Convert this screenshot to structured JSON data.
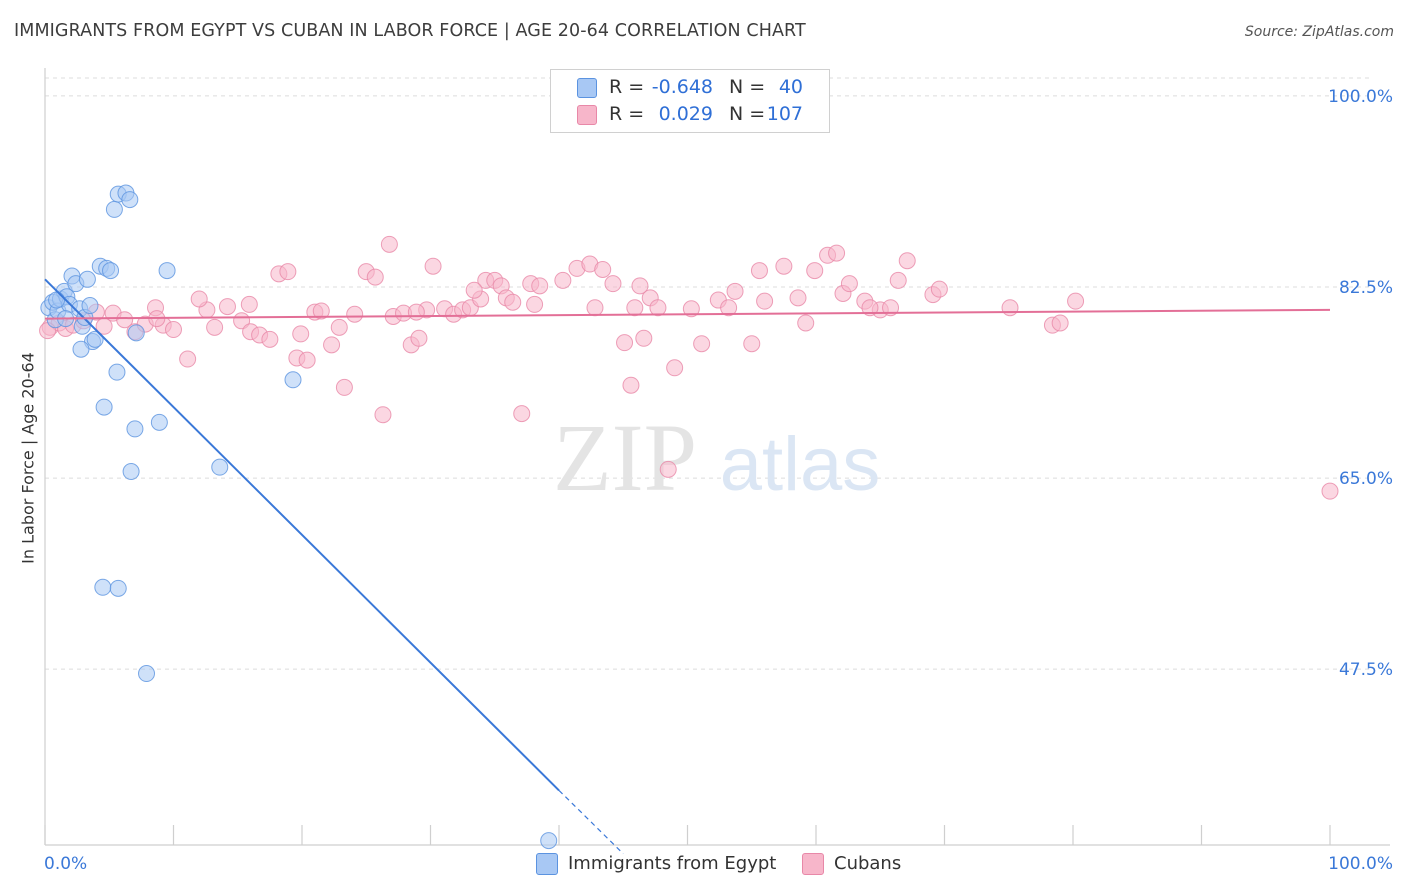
{
  "title": "IMMIGRANTS FROM EGYPT VS CUBAN IN LABOR FORCE | AGE 20-64 CORRELATION CHART",
  "source": "Source: ZipAtlas.com",
  "watermark": {
    "zip": "ZIP",
    "atlas": "atlas"
  },
  "legend": {
    "rows": [
      {
        "r_label": "R =",
        "r_value": "-0.648",
        "n_label": "N =",
        "n_value": "40",
        "color": "#a8c8f4"
      },
      {
        "r_label": "R =",
        "r_value": "0.029",
        "n_label": "N =",
        "n_value": "107",
        "color": "#f7b6ca"
      }
    ]
  },
  "bottom_legend": [
    {
      "label": "Immigrants from Egypt",
      "color": "#a8c8f4"
    },
    {
      "label": "Cubans",
      "color": "#f7b6ca"
    }
  ],
  "colors": {
    "egypt_fill": "#a8c8f4",
    "egypt_stroke": "#5b93e0",
    "egypt_line": "#3a78d8",
    "cuban_fill": "#f7b6ca",
    "cuban_stroke": "#e888a8",
    "cuban_line": "#e36f97",
    "tick_label": "#3a78d8",
    "grid": "#dcdcdc"
  },
  "chart_data": {
    "type": "scatter",
    "title": "IMMIGRANTS FROM EGYPT VS CUBAN IN LABOR FORCE | AGE 20-64 CORRELATION CHART",
    "xlabel": "",
    "ylabel": "In Labor Force | Age 20-64",
    "x_tick_labels": [
      "0.0%",
      "100.0%"
    ],
    "y_tick_labels": [
      "100.0%",
      "82.5%",
      "65.0%",
      "47.5%"
    ],
    "y_ticks": [
      100.0,
      82.5,
      65.0,
      47.5
    ],
    "xlim": [
      0,
      100
    ],
    "ylim": [
      31.4,
      102.0
    ],
    "grid": true,
    "legend_position": "top-center",
    "series": [
      {
        "name": "Immigrants from Egypt",
        "trend": {
          "x": [
            0.0,
            40.0,
            45.0
          ],
          "y": [
            83.2,
            36.4,
            30.6
          ],
          "solid_until_x": 40.0
        },
        "points": [
          [
            0.3,
            80.6
          ],
          [
            0.6,
            81.1
          ],
          [
            0.8,
            79.5
          ],
          [
            1.0,
            80.3
          ],
          [
            1.2,
            81.4
          ],
          [
            1.5,
            82.1
          ],
          [
            1.7,
            81.6
          ],
          [
            1.9,
            80.9
          ],
          [
            2.1,
            83.5
          ],
          [
            2.4,
            82.8
          ],
          [
            2.7,
            80.5
          ],
          [
            2.9,
            78.9
          ],
          [
            3.1,
            79.7
          ],
          [
            3.3,
            83.2
          ],
          [
            3.5,
            80.8
          ],
          [
            3.7,
            77.5
          ],
          [
            3.9,
            77.7
          ],
          [
            4.3,
            84.4
          ],
          [
            4.8,
            84.2
          ],
          [
            5.1,
            84.0
          ],
          [
            5.4,
            89.6
          ],
          [
            5.7,
            91.0
          ],
          [
            6.3,
            91.1
          ],
          [
            6.6,
            90.5
          ],
          [
            2.8,
            76.8
          ],
          [
            5.6,
            74.7
          ],
          [
            4.6,
            71.5
          ],
          [
            7.1,
            78.3
          ],
          [
            7.0,
            69.5
          ],
          [
            8.9,
            70.1
          ],
          [
            6.7,
            65.6
          ],
          [
            9.5,
            84.0
          ],
          [
            13.6,
            66.0
          ],
          [
            19.3,
            74.0
          ],
          [
            4.5,
            55.0
          ],
          [
            5.7,
            54.9
          ],
          [
            7.9,
            47.1
          ],
          [
            39.2,
            31.8
          ],
          [
            1.6,
            79.6
          ],
          [
            0.9,
            81.3
          ]
        ]
      },
      {
        "name": "Cubans",
        "trend": {
          "x": [
            0.0,
            100.0
          ],
          "y": [
            79.6,
            80.4
          ]
        },
        "points": [
          [
            0.4,
            78.8
          ],
          [
            1.1,
            79.2
          ],
          [
            1.6,
            78.7
          ],
          [
            2.2,
            79.0
          ],
          [
            3.0,
            79.4
          ],
          [
            4.0,
            80.2
          ],
          [
            4.6,
            78.9
          ],
          [
            5.3,
            80.1
          ],
          [
            6.2,
            79.5
          ],
          [
            7.0,
            78.4
          ],
          [
            7.8,
            79.1
          ],
          [
            8.6,
            80.6
          ],
          [
            9.2,
            79.0
          ],
          [
            10.0,
            78.6
          ],
          [
            11.1,
            75.9
          ],
          [
            12.6,
            80.4
          ],
          [
            13.2,
            78.8
          ],
          [
            14.2,
            80.7
          ],
          [
            15.3,
            79.4
          ],
          [
            16.0,
            78.4
          ],
          [
            16.7,
            78.1
          ],
          [
            17.5,
            77.7
          ],
          [
            18.2,
            83.7
          ],
          [
            18.9,
            83.9
          ],
          [
            19.6,
            76.0
          ],
          [
            20.4,
            75.8
          ],
          [
            21.0,
            80.2
          ],
          [
            21.5,
            80.3
          ],
          [
            22.3,
            77.2
          ],
          [
            23.3,
            73.3
          ],
          [
            24.1,
            80.0
          ],
          [
            25.0,
            83.9
          ],
          [
            25.7,
            83.4
          ],
          [
            26.3,
            70.8
          ],
          [
            27.1,
            79.8
          ],
          [
            27.9,
            80.1
          ],
          [
            28.5,
            77.2
          ],
          [
            29.1,
            77.8
          ],
          [
            29.7,
            80.4
          ],
          [
            30.2,
            84.4
          ],
          [
            31.1,
            80.5
          ],
          [
            31.8,
            80.0
          ],
          [
            32.5,
            80.4
          ],
          [
            33.1,
            80.6
          ],
          [
            33.9,
            81.4
          ],
          [
            34.3,
            83.1
          ],
          [
            35.0,
            83.1
          ],
          [
            35.5,
            82.6
          ],
          [
            35.9,
            81.5
          ],
          [
            36.4,
            81.1
          ],
          [
            37.1,
            70.9
          ],
          [
            37.8,
            82.8
          ],
          [
            38.5,
            82.6
          ],
          [
            40.3,
            83.1
          ],
          [
            41.4,
            84.2
          ],
          [
            42.4,
            84.6
          ],
          [
            43.4,
            84.1
          ],
          [
            44.2,
            82.8
          ],
          [
            45.1,
            77.4
          ],
          [
            45.6,
            73.5
          ],
          [
            45.9,
            80.6
          ],
          [
            46.6,
            77.8
          ],
          [
            47.1,
            81.5
          ],
          [
            47.7,
            80.6
          ],
          [
            49.0,
            75.1
          ],
          [
            50.3,
            80.5
          ],
          [
            51.1,
            77.3
          ],
          [
            52.4,
            81.3
          ],
          [
            53.2,
            80.6
          ],
          [
            53.7,
            82.1
          ],
          [
            55.0,
            77.3
          ],
          [
            56.0,
            81.2
          ],
          [
            57.5,
            84.4
          ],
          [
            58.6,
            81.5
          ],
          [
            59.9,
            84.0
          ],
          [
            60.9,
            85.4
          ],
          [
            61.6,
            85.6
          ],
          [
            62.1,
            81.9
          ],
          [
            62.6,
            82.8
          ],
          [
            63.8,
            81.2
          ],
          [
            65.0,
            80.4
          ],
          [
            65.8,
            80.6
          ],
          [
            66.4,
            83.1
          ],
          [
            67.1,
            84.9
          ],
          [
            69.1,
            81.8
          ],
          [
            69.6,
            82.3
          ],
          [
            75.1,
            80.6
          ],
          [
            78.4,
            79.0
          ],
          [
            79.0,
            79.2
          ],
          [
            80.2,
            81.2
          ],
          [
            100.0,
            63.8
          ],
          [
            48.5,
            65.8
          ],
          [
            22.9,
            78.8
          ],
          [
            26.8,
            86.4
          ],
          [
            8.7,
            79.6
          ],
          [
            12.0,
            81.4
          ],
          [
            15.9,
            80.9
          ],
          [
            19.9,
            78.2
          ],
          [
            28.9,
            80.2
          ],
          [
            33.4,
            82.2
          ],
          [
            38.1,
            80.9
          ],
          [
            42.8,
            80.6
          ],
          [
            46.3,
            82.6
          ],
          [
            55.6,
            84.0
          ],
          [
            59.2,
            79.2
          ],
          [
            64.2,
            80.6
          ],
          [
            0.2,
            78.5
          ]
        ]
      }
    ]
  }
}
